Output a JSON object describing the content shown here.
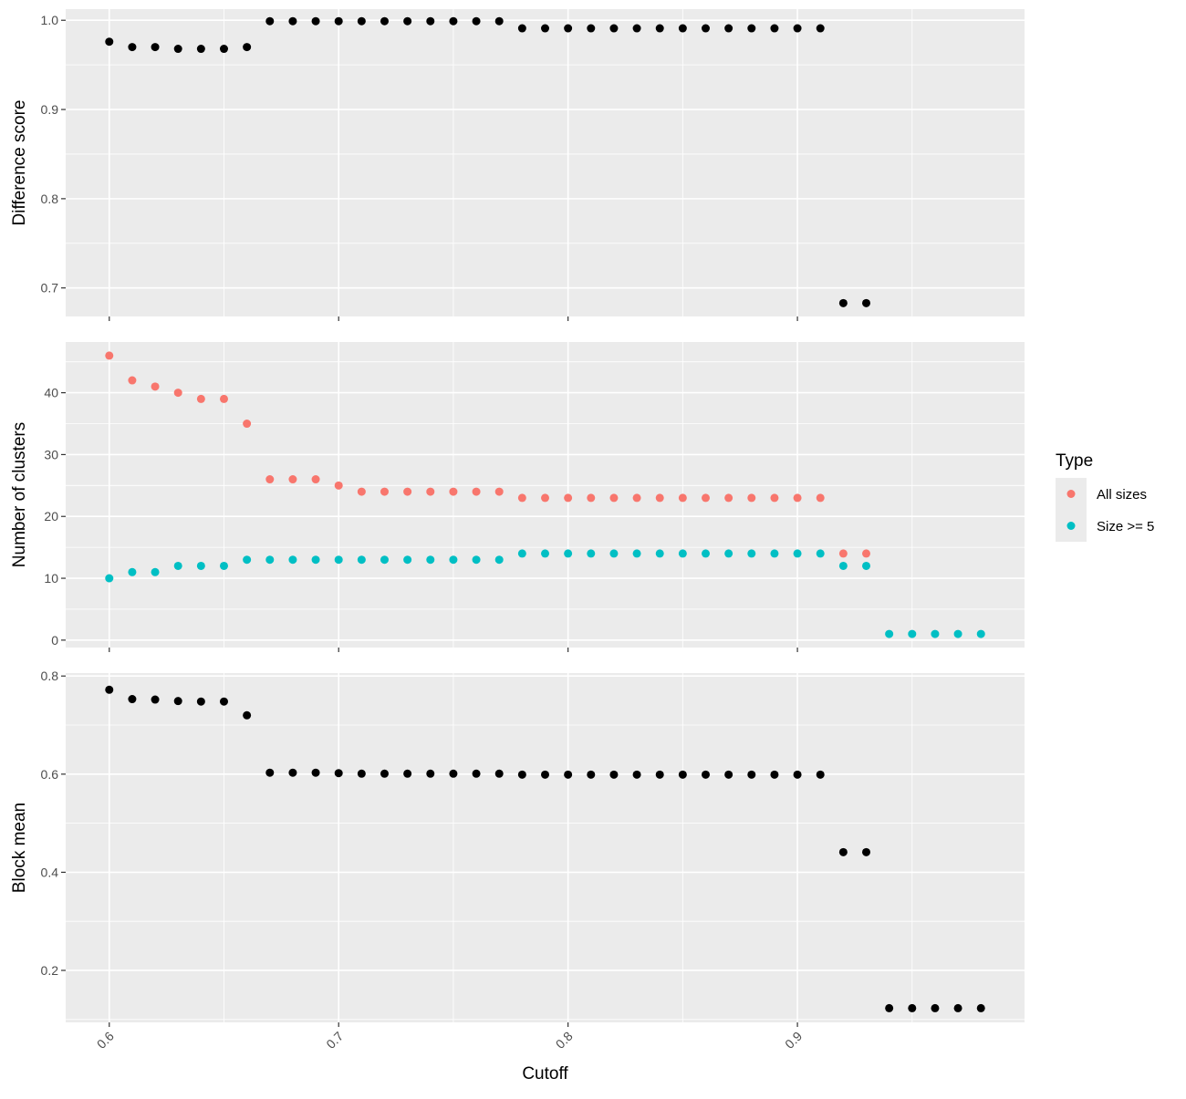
{
  "chart_data": {
    "type": "scatter",
    "x_label": "Cutoff",
    "x_ticks": [
      "0.6",
      "0.7",
      "0.8",
      "0.9"
    ],
    "x_range": [
      0.581,
      0.999
    ],
    "grid": true,
    "colors": {
      "panel_bg": "#EBEBEB",
      "grid": "#FFFFFF",
      "point_black": "#000000",
      "all_sizes": "#F8766D",
      "size_ge5": "#00BFC4"
    },
    "legend": {
      "title": "Type",
      "position": "right",
      "items": [
        {
          "label": "All sizes",
          "color": "#F8766D"
        },
        {
          "label": "Size >= 5",
          "color": "#00BFC4"
        }
      ]
    },
    "panels": [
      {
        "y_label": "Difference score",
        "y_range": [
          0.668,
          1.0125
        ],
        "y_ticks": [
          "0.7",
          "0.8",
          "0.9",
          "1.0"
        ],
        "series": [
          {
            "color": "#000000",
            "x": [
              0.6,
              0.61,
              0.62,
              0.63,
              0.64,
              0.65,
              0.66,
              0.67,
              0.68,
              0.69,
              0.7,
              0.71,
              0.72,
              0.73,
              0.74,
              0.75,
              0.76,
              0.77,
              0.78,
              0.79,
              0.8,
              0.81,
              0.82,
              0.83,
              0.84,
              0.85,
              0.86,
              0.87,
              0.88,
              0.89,
              0.9,
              0.91,
              0.92,
              0.93
            ],
            "y": [
              0.976,
              0.97,
              0.97,
              0.968,
              0.968,
              0.968,
              0.97,
              0.999,
              0.999,
              0.999,
              0.999,
              0.999,
              0.999,
              0.999,
              0.999,
              0.999,
              0.999,
              0.999,
              0.991,
              0.991,
              0.991,
              0.991,
              0.991,
              0.991,
              0.991,
              0.991,
              0.991,
              0.991,
              0.991,
              0.991,
              0.991,
              0.991,
              0.683,
              0.683
            ]
          }
        ]
      },
      {
        "y_label": "Number of clusters",
        "y_range": [
          -1.2,
          48.2
        ],
        "y_ticks": [
          "0",
          "10",
          "20",
          "30",
          "40"
        ],
        "series": [
          {
            "name": "All sizes",
            "color": "#F8766D",
            "x": [
              0.6,
              0.61,
              0.62,
              0.63,
              0.64,
              0.65,
              0.66,
              0.67,
              0.68,
              0.69,
              0.7,
              0.71,
              0.72,
              0.73,
              0.74,
              0.75,
              0.76,
              0.77,
              0.78,
              0.79,
              0.8,
              0.81,
              0.82,
              0.83,
              0.84,
              0.85,
              0.86,
              0.87,
              0.88,
              0.89,
              0.9,
              0.91,
              0.92,
              0.93
            ],
            "y": [
              46,
              42,
              41,
              40,
              39,
              39,
              35,
              26,
              26,
              26,
              25,
              24,
              24,
              24,
              24,
              24,
              24,
              24,
              23,
              23,
              23,
              23,
              23,
              23,
              23,
              23,
              23,
              23,
              23,
              23,
              23,
              23,
              14,
              14
            ]
          },
          {
            "name": "Size >= 5",
            "color": "#00BFC4",
            "x": [
              0.6,
              0.61,
              0.62,
              0.63,
              0.64,
              0.65,
              0.66,
              0.67,
              0.68,
              0.69,
              0.7,
              0.71,
              0.72,
              0.73,
              0.74,
              0.75,
              0.76,
              0.77,
              0.78,
              0.79,
              0.8,
              0.81,
              0.82,
              0.83,
              0.84,
              0.85,
              0.86,
              0.87,
              0.88,
              0.89,
              0.9,
              0.91,
              0.92,
              0.93,
              0.94,
              0.95,
              0.96,
              0.97,
              0.98
            ],
            "y": [
              10,
              11,
              11,
              12,
              12,
              12,
              13,
              13,
              13,
              13,
              13,
              13,
              13,
              13,
              13,
              13,
              13,
              13,
              14,
              14,
              14,
              14,
              14,
              14,
              14,
              14,
              14,
              14,
              14,
              14,
              14,
              14,
              12,
              12,
              1,
              1,
              1,
              1,
              1
            ]
          }
        ]
      },
      {
        "y_label": "Block mean",
        "y_range": [
          0.094,
          0.806
        ],
        "y_ticks": [
          "0.2",
          "0.4",
          "0.6",
          "0.8"
        ],
        "series": [
          {
            "color": "#000000",
            "x": [
              0.6,
              0.61,
              0.62,
              0.63,
              0.64,
              0.65,
              0.66,
              0.67,
              0.68,
              0.69,
              0.7,
              0.71,
              0.72,
              0.73,
              0.74,
              0.75,
              0.76,
              0.77,
              0.78,
              0.79,
              0.8,
              0.81,
              0.82,
              0.83,
              0.84,
              0.85,
              0.86,
              0.87,
              0.88,
              0.89,
              0.9,
              0.91,
              0.92,
              0.93,
              0.94,
              0.95,
              0.96,
              0.97,
              0.98
            ],
            "y": [
              0.772,
              0.753,
              0.752,
              0.749,
              0.748,
              0.748,
              0.72,
              0.603,
              0.603,
              0.603,
              0.602,
              0.601,
              0.601,
              0.601,
              0.601,
              0.601,
              0.601,
              0.601,
              0.599,
              0.599,
              0.599,
              0.599,
              0.599,
              0.599,
              0.599,
              0.599,
              0.599,
              0.599,
              0.599,
              0.599,
              0.599,
              0.599,
              0.441,
              0.441,
              0.123,
              0.123,
              0.123,
              0.123,
              0.123
            ]
          }
        ]
      }
    ]
  }
}
